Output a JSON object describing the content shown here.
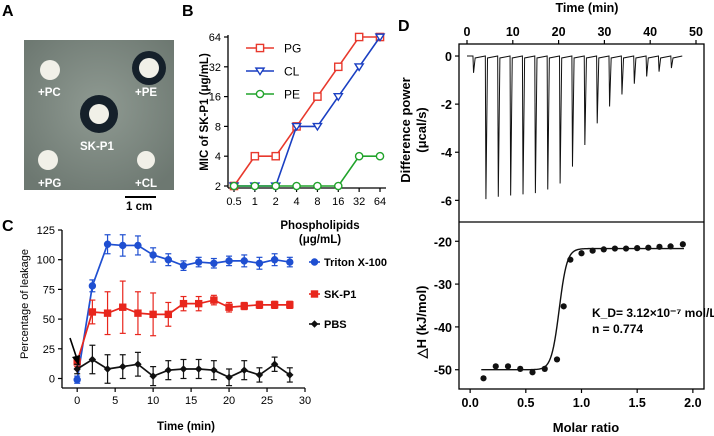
{
  "panels": {
    "A": {
      "letter": "A",
      "labels": {
        "pc": "+PC",
        "pe": "+PE",
        "center": "SK-P1",
        "pg": "+PG",
        "cl": "+CL"
      },
      "scale_bar": "1 cm",
      "colors": {
        "background": "#7f8a83",
        "disk": "#f1f0e8",
        "halo": "#15202a"
      }
    },
    "B": {
      "letter": "B"
    },
    "C": {
      "letter": "C"
    },
    "D": {
      "letter": "D"
    }
  },
  "chart_data": [
    {
      "id": "B",
      "type": "line",
      "xlabel": "Phospholipids\n(μg/mL)",
      "ylabel": "MIC of SK-P1 (μg/mL)",
      "xscale": "log2",
      "yscale": "log2",
      "categories": [
        "0.5",
        "1",
        "2",
        "4",
        "8",
        "16",
        "32",
        "64"
      ],
      "x": [
        0.5,
        1,
        2,
        4,
        8,
        16,
        32,
        64
      ],
      "yticks": [
        2,
        4,
        8,
        16,
        32,
        64
      ],
      "ylim": [
        2,
        64
      ],
      "legend_position": "top-left",
      "series": [
        {
          "name": "PG",
          "color": "#e8392d",
          "marker": "square",
          "values": [
            2,
            4,
            4,
            8,
            16,
            32,
            64,
            64
          ]
        },
        {
          "name": "CL",
          "color": "#1a3fc2",
          "marker": "triangle-down",
          "values": [
            2,
            2,
            2,
            8,
            8,
            16,
            32,
            64
          ]
        },
        {
          "name": "PE",
          "color": "#21a32b",
          "marker": "circle",
          "values": [
            2,
            2,
            2,
            2,
            2,
            2,
            4,
            4
          ]
        }
      ]
    },
    {
      "id": "C",
      "type": "line",
      "xlabel": "Time (min)",
      "ylabel": "Percentage of leakage",
      "xlim": [
        -2,
        30
      ],
      "ylim": [
        -8,
        125
      ],
      "xticks": [
        0,
        5,
        10,
        15,
        20,
        25,
        30
      ],
      "yticks": [
        0,
        25,
        50,
        75,
        100,
        125
      ],
      "legend_position": "right",
      "series": [
        {
          "name": "Triton X-100",
          "color": "#1f4fd1",
          "marker": "circle",
          "x": [
            0,
            2,
            4,
            6,
            8,
            10,
            12,
            14,
            16,
            18,
            20,
            22,
            24,
            26,
            28
          ],
          "values": [
            -1,
            78,
            113,
            112,
            112,
            104,
            100,
            95,
            98,
            97,
            99,
            99,
            97,
            100,
            98
          ],
          "errors": [
            3,
            5,
            8,
            9,
            8,
            6,
            5,
            4,
            4,
            4,
            4,
            5,
            5,
            5,
            4
          ]
        },
        {
          "name": "SK-P1",
          "color": "#e8261d",
          "marker": "square",
          "x": [
            0,
            2,
            4,
            6,
            8,
            10,
            12,
            14,
            16,
            18,
            20,
            22,
            24,
            26,
            28
          ],
          "values": [
            14,
            56,
            55,
            60,
            55,
            54,
            54,
            63,
            63,
            66,
            60,
            61,
            62,
            62,
            62
          ],
          "errors": [
            4,
            10,
            18,
            22,
            18,
            18,
            10,
            6,
            6,
            4,
            4,
            3,
            3,
            3,
            3
          ]
        },
        {
          "name": "PBS",
          "color": "#111111",
          "marker": "diamond",
          "x": [
            0,
            2,
            4,
            6,
            8,
            10,
            12,
            14,
            16,
            18,
            20,
            22,
            24,
            26,
            28
          ],
          "values": [
            8,
            16,
            8,
            10,
            12,
            2,
            7,
            8,
            8,
            7,
            1,
            7,
            3,
            12,
            3
          ],
          "errors": [
            4,
            12,
            12,
            10,
            10,
            8,
            8,
            8,
            8,
            8,
            7,
            8,
            6,
            6,
            6
          ]
        }
      ]
    },
    {
      "id": "D-top",
      "type": "line",
      "title": "Time (min)",
      "ylabel": "Difference power\n(μcal/s)",
      "xlim": [
        0,
        50
      ],
      "xticks": [
        0,
        10,
        20,
        30,
        40,
        50
      ],
      "ylim": [
        -6.9,
        0.5
      ],
      "yticks": [
        0,
        -2,
        -4,
        -6
      ],
      "color": "#111111",
      "baseline": 0,
      "injection_times": [
        1.3,
        4.0,
        6.7,
        9.4,
        12.1,
        14.8,
        17.5,
        20.2,
        22.9,
        25.6,
        28.3,
        31.0,
        33.7,
        36.4,
        39.1,
        41.8,
        44.5
      ],
      "peak_values": [
        -0.7,
        -5.95,
        -5.85,
        -5.8,
        -5.75,
        -5.7,
        -5.55,
        -5.3,
        -4.6,
        -3.7,
        -2.8,
        -2.1,
        -1.6,
        -1.15,
        -0.85,
        -0.65,
        -0.5
      ]
    },
    {
      "id": "D-bottom",
      "type": "scatter",
      "xlabel": "Molar ratio",
      "ylabel": "△H (kJ/mol)",
      "xlim": [
        -0.1,
        2.1
      ],
      "ylim": [
        -54.5,
        -15.5
      ],
      "xticks": [
        0.0,
        0.5,
        1.0,
        1.5,
        2.0
      ],
      "xtick_labels": [
        "0.0",
        "0.5",
        "1.0",
        "1.5",
        "2.0"
      ],
      "yticks": [
        -50,
        -40,
        -30,
        -20
      ],
      "x": [
        0.12,
        0.23,
        0.34,
        0.45,
        0.56,
        0.67,
        0.78,
        0.84,
        0.9,
        1.0,
        1.1,
        1.2,
        1.3,
        1.4,
        1.5,
        1.6,
        1.7,
        1.8,
        1.91
      ],
      "values": [
        -52,
        -49.2,
        -49.2,
        -49.8,
        -50.6,
        -49.8,
        -47.6,
        -35.2,
        -24.3,
        -22.8,
        -22.2,
        -21.9,
        -21.7,
        -21.7,
        -21.6,
        -21.5,
        -21.3,
        -21.2,
        -20.7
      ],
      "fit_color": "#111111",
      "annotation_kd": "K_D= 3.12×10⁻⁷ mol/L",
      "annotation_n": "n = 0.774"
    }
  ]
}
